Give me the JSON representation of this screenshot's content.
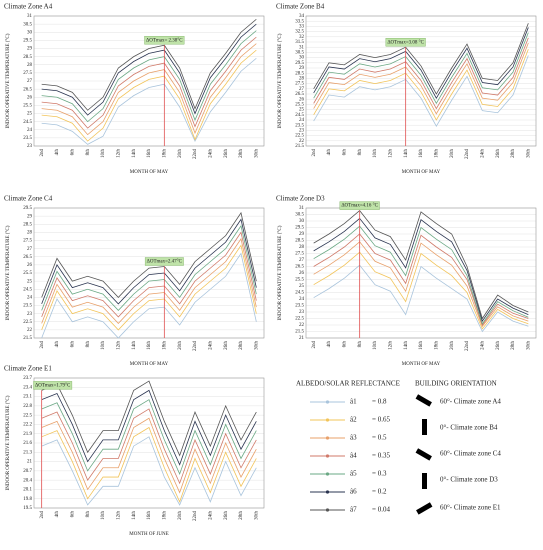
{
  "chart_data": [
    {
      "type": "line",
      "title": "Climate Zone A4",
      "x_label": "MONTH OF MAY",
      "y_label": "INDOOR OPERATIVE TEMPERATURE (°C)",
      "categories": [
        "2nd",
        "4th",
        "6th",
        "8th",
        "10th",
        "12th",
        "14th",
        "16th",
        "18th",
        "20th",
        "22nd",
        "24th",
        "26th",
        "28th",
        "30th"
      ],
      "ylim": [
        23,
        31
      ],
      "yticks": [
        23,
        23.5,
        24,
        24.5,
        25,
        25.5,
        26,
        26.5,
        27,
        27.5,
        28,
        28.5,
        29,
        29.5,
        30,
        30.5,
        31
      ],
      "grid": true,
      "annotation": {
        "text": "ΔOTmax= 2.38°C",
        "category": "18th"
      },
      "series": [
        {
          "values": [
            24.4,
            24.3,
            23.9,
            23.1,
            23.6,
            25.4,
            26.1,
            26.6,
            26.8,
            25.4,
            23.3,
            25.1,
            26.3,
            27.6,
            28.4
          ]
        },
        {
          "values": [
            24.9,
            24.8,
            24.4,
            23.3,
            24.1,
            25.9,
            26.6,
            27.1,
            27.3,
            25.9,
            23.4,
            25.6,
            26.8,
            28.1,
            28.9
          ]
        },
        {
          "values": [
            25.3,
            25.2,
            24.8,
            23.7,
            24.5,
            26.3,
            27.0,
            27.5,
            27.7,
            26.3,
            23.8,
            26.0,
            27.2,
            28.5,
            29.3
          ]
        },
        {
          "values": [
            25.7,
            25.6,
            25.2,
            24.1,
            24.9,
            26.7,
            27.4,
            27.9,
            28.1,
            26.7,
            24.2,
            26.4,
            27.6,
            28.9,
            29.7
          ]
        },
        {
          "values": [
            26.1,
            26.0,
            25.6,
            24.5,
            25.3,
            27.1,
            27.8,
            28.3,
            28.5,
            27.1,
            24.6,
            26.8,
            28.0,
            29.3,
            30.1
          ]
        },
        {
          "values": [
            26.5,
            26.4,
            26.0,
            24.9,
            25.7,
            27.5,
            28.2,
            28.7,
            28.9,
            27.5,
            25.0,
            27.2,
            28.4,
            29.7,
            30.5
          ]
        },
        {
          "values": [
            26.8,
            26.7,
            26.3,
            25.2,
            26.0,
            27.8,
            28.5,
            29.0,
            29.2,
            27.8,
            25.3,
            27.5,
            28.7,
            30.0,
            30.8
          ]
        }
      ]
    },
    {
      "type": "line",
      "title": "Climate Zone B4",
      "x_label": "MONTH OF MAY",
      "y_label": "INDOOR OPERATIVE TEMPERATURE (°C)",
      "categories": [
        "2nd",
        "4th",
        "6th",
        "8th",
        "10th",
        "12th",
        "14th",
        "16th",
        "18th",
        "20th",
        "22nd",
        "24th",
        "26th",
        "28th",
        "30th"
      ],
      "ylim": [
        21.5,
        34
      ],
      "yticks": [
        21.5,
        22,
        22.5,
        23,
        23.5,
        24,
        24.5,
        25,
        25.5,
        26,
        26.5,
        27,
        27.5,
        28,
        28.5,
        29,
        29.5,
        30,
        30.5,
        31,
        31.5,
        32,
        32.5,
        33,
        33.5,
        34
      ],
      "grid": true,
      "annotation": {
        "text": "ΔOTmax=3.08 °C",
        "category": "14th"
      },
      "series": [
        {
          "values": [
            23.9,
            26.4,
            26.2,
            27.2,
            26.9,
            27.2,
            27.9,
            26.1,
            23.4,
            25.9,
            28.2,
            24.9,
            24.7,
            26.4,
            30.2
          ]
        },
        {
          "values": [
            24.5,
            27.0,
            26.8,
            27.8,
            27.5,
            27.8,
            28.5,
            26.7,
            24.0,
            26.5,
            28.8,
            25.5,
            25.3,
            27.0,
            30.8
          ]
        },
        {
          "values": [
            25.1,
            27.6,
            27.4,
            28.4,
            28.1,
            28.4,
            29.1,
            27.3,
            24.6,
            27.1,
            29.4,
            26.1,
            25.9,
            27.6,
            31.4
          ]
        },
        {
          "values": [
            25.6,
            28.1,
            27.9,
            28.9,
            28.6,
            28.9,
            29.6,
            27.8,
            25.1,
            27.6,
            29.9,
            26.6,
            26.4,
            28.1,
            31.9
          ]
        },
        {
          "values": [
            26.1,
            28.6,
            28.4,
            29.4,
            29.1,
            29.4,
            30.1,
            28.3,
            25.6,
            28.1,
            30.4,
            27.1,
            26.9,
            28.6,
            32.4
          ]
        },
        {
          "values": [
            26.6,
            29.1,
            28.9,
            29.9,
            29.6,
            29.9,
            30.6,
            28.8,
            26.1,
            28.6,
            30.9,
            27.6,
            27.4,
            29.1,
            32.9
          ]
        },
        {
          "values": [
            27.0,
            29.5,
            29.3,
            30.3,
            30.0,
            30.3,
            31.0,
            29.2,
            26.5,
            29.0,
            31.3,
            28.0,
            27.8,
            29.5,
            33.3
          ]
        }
      ]
    },
    {
      "type": "line",
      "title": "Climate Zone C4",
      "x_label": "MONTH OF MAY",
      "y_label": "INDOOR OPERATIVE TEMPERATURE (°C)",
      "categories": [
        "2nd",
        "4th",
        "6th",
        "8th",
        "10th",
        "12th",
        "14th",
        "16th",
        "18th",
        "20th",
        "22nd",
        "24th",
        "26th",
        "28th",
        "30th"
      ],
      "ylim": [
        21.5,
        29.5
      ],
      "yticks": [
        21.5,
        22,
        22.5,
        23,
        23.5,
        24,
        24.5,
        25,
        25.5,
        26,
        26.5,
        27,
        27.5,
        28,
        28.5,
        29,
        29.5
      ],
      "grid": true,
      "annotation": {
        "text": "ΔOTmax=2.47°C",
        "category": "18th"
      },
      "series": [
        {
          "values": [
            21.5,
            23.9,
            22.5,
            22.8,
            22.5,
            21.5,
            22.5,
            23.3,
            23.4,
            22.3,
            23.7,
            24.5,
            25.3,
            26.7,
            22.5
          ]
        },
        {
          "values": [
            22.0,
            24.4,
            23.0,
            23.3,
            23.0,
            22.0,
            23.0,
            23.8,
            23.9,
            22.8,
            24.2,
            25.0,
            25.8,
            27.2,
            23.0
          ]
        },
        {
          "values": [
            22.4,
            24.8,
            23.4,
            23.7,
            23.4,
            22.4,
            23.4,
            24.2,
            24.3,
            23.2,
            24.6,
            25.4,
            26.2,
            27.6,
            23.4
          ]
        },
        {
          "values": [
            22.8,
            25.2,
            23.8,
            24.1,
            23.8,
            22.8,
            23.8,
            24.6,
            24.7,
            23.6,
            25.0,
            25.8,
            26.6,
            28.0,
            23.8
          ]
        },
        {
          "values": [
            23.2,
            25.6,
            24.2,
            24.5,
            24.2,
            23.2,
            24.2,
            25.0,
            25.1,
            24.0,
            25.4,
            26.2,
            27.0,
            28.4,
            24.2
          ]
        },
        {
          "values": [
            23.6,
            26.0,
            24.6,
            24.9,
            24.6,
            23.6,
            24.6,
            25.4,
            25.5,
            24.4,
            25.8,
            26.6,
            27.4,
            28.8,
            24.6
          ]
        },
        {
          "values": [
            24.0,
            26.4,
            25.0,
            25.3,
            25.0,
            24.0,
            25.0,
            25.8,
            25.9,
            24.8,
            26.2,
            27.0,
            27.8,
            29.2,
            25.0
          ]
        }
      ]
    },
    {
      "type": "line",
      "title": "Climate Zone D3",
      "x_label": "MONTH OF MAY",
      "y_label": "INDOOR OPERATIVE TEMPERATURE (°C)",
      "categories": [
        "2nd",
        "4th",
        "6th",
        "8th",
        "10th",
        "12th",
        "14th",
        "16th",
        "18th",
        "20th",
        "22nd",
        "24th",
        "26th",
        "28th",
        "30th"
      ],
      "ylim": [
        21,
        31
      ],
      "yticks": [
        21,
        21.5,
        22,
        22.5,
        23,
        23.5,
        24,
        24.5,
        25,
        25.5,
        26,
        26.5,
        27,
        27.5,
        28,
        28.5,
        29,
        29.5,
        30,
        30.5,
        31
      ],
      "grid": true,
      "annotation": {
        "text": "ΔOTmax=4.16 °C",
        "category": "8th"
      },
      "series": [
        {
          "values": [
            24.1,
            24.8,
            25.6,
            26.6,
            25.1,
            24.6,
            22.8,
            26.5,
            25.6,
            24.8,
            24.0,
            21.5,
            23.0,
            22.3,
            21.9
          ]
        },
        {
          "values": [
            25.1,
            25.8,
            26.6,
            27.6,
            26.1,
            25.6,
            23.8,
            27.5,
            26.6,
            25.8,
            24.5,
            21.7,
            23.2,
            22.5,
            22.1
          ]
        },
        {
          "values": [
            25.9,
            26.6,
            27.4,
            28.4,
            26.9,
            26.4,
            24.6,
            28.3,
            27.4,
            26.6,
            25.0,
            21.9,
            23.4,
            22.7,
            22.3
          ]
        },
        {
          "values": [
            26.5,
            27.2,
            28.0,
            29.0,
            27.5,
            27.0,
            25.2,
            28.9,
            28.0,
            27.2,
            25.5,
            22.0,
            23.6,
            22.9,
            22.5
          ]
        },
        {
          "values": [
            27.1,
            27.8,
            28.6,
            29.6,
            28.1,
            27.6,
            25.8,
            29.5,
            28.6,
            27.8,
            25.8,
            22.1,
            23.8,
            23.1,
            22.6
          ]
        },
        {
          "values": [
            27.7,
            28.4,
            29.2,
            30.2,
            28.7,
            28.2,
            26.4,
            30.1,
            29.2,
            28.4,
            26.2,
            22.3,
            24.0,
            23.3,
            22.8
          ]
        },
        {
          "values": [
            28.3,
            29.0,
            29.8,
            30.8,
            29.3,
            28.8,
            27.0,
            30.7,
            29.8,
            29.0,
            26.5,
            22.5,
            24.3,
            23.5,
            23.0
          ]
        }
      ]
    },
    {
      "type": "line",
      "title": "Climate Zone E1",
      "x_label": "MONTH OF JUNE",
      "y_label": "INDOOR OPERATIVE TEMPERATURE (°C)",
      "categories": [
        "2nd",
        "4th",
        "6th",
        "8th",
        "10th",
        "12th",
        "14th",
        "16th",
        "18th",
        "20th",
        "22nd",
        "24th",
        "26th",
        "28th",
        "30th"
      ],
      "ylim": [
        19.5,
        23.7
      ],
      "yticks": [
        19.5,
        19.8,
        20.1,
        20.4,
        20.7,
        21,
        21.3,
        21.6,
        21.9,
        22.2,
        22.5,
        22.8,
        23.1,
        23.4,
        23.7
      ],
      "grid": true,
      "annotation": {
        "text": "ΔOTmax=1.79°C",
        "category": "2nd"
      },
      "series": [
        {
          "values": [
            21.5,
            21.7,
            20.7,
            19.6,
            20.2,
            20.2,
            21.5,
            21.8,
            20.5,
            19.6,
            20.8,
            19.7,
            21.0,
            19.9,
            20.8
          ]
        },
        {
          "values": [
            21.8,
            22.0,
            21.0,
            19.8,
            20.5,
            20.5,
            21.8,
            22.1,
            20.8,
            19.7,
            21.1,
            20.0,
            21.3,
            20.2,
            21.1
          ]
        },
        {
          "values": [
            22.1,
            22.3,
            21.3,
            20.1,
            20.8,
            20.8,
            22.1,
            22.4,
            21.1,
            20.0,
            21.4,
            20.3,
            21.6,
            20.5,
            21.4
          ]
        },
        {
          "values": [
            22.4,
            22.6,
            21.6,
            20.4,
            21.1,
            21.1,
            22.4,
            22.7,
            21.4,
            20.3,
            21.7,
            20.6,
            21.9,
            20.8,
            21.7
          ]
        },
        {
          "values": [
            22.7,
            22.9,
            21.9,
            20.7,
            21.4,
            21.4,
            22.7,
            23.0,
            21.7,
            20.6,
            22.0,
            20.9,
            22.2,
            21.1,
            22.0
          ]
        },
        {
          "values": [
            23.0,
            23.2,
            22.2,
            21.0,
            21.7,
            21.7,
            23.0,
            23.3,
            22.0,
            20.9,
            22.3,
            21.2,
            22.5,
            21.4,
            22.3
          ]
        },
        {
          "values": [
            23.3,
            23.5,
            22.5,
            21.3,
            22.0,
            22.0,
            23.3,
            23.6,
            22.3,
            21.2,
            22.6,
            21.5,
            22.8,
            21.7,
            22.6
          ]
        }
      ]
    }
  ],
  "legend": {
    "title": "ALBEDO/SOLAR REFLECTANCE",
    "items": [
      {
        "name": "â1",
        "label": "= 0.8",
        "color": "#a9c4dc"
      },
      {
        "name": "â2",
        "label": "= 0.65",
        "color": "#f2c45a"
      },
      {
        "name": "â3",
        "label": "= 0.5",
        "color": "#e8a06a"
      },
      {
        "name": "â4",
        "label": "= 0.35",
        "color": "#d07a6a"
      },
      {
        "name": "â5",
        "label": "= 0.3",
        "color": "#6aa884"
      },
      {
        "name": "â6",
        "label": "= 0.2",
        "color": "#2a3450"
      },
      {
        "name": "â7",
        "label": "= 0.04",
        "color": "#555555"
      }
    ]
  },
  "orientation": {
    "title": "BUILDING ORIENTATION",
    "items": [
      "60°- Climate zone A4",
      "0°- Climate zone B4",
      "60°- Climate zone C4",
      "0°- Climate zone D3",
      "60°- Climate zone E1"
    ]
  }
}
